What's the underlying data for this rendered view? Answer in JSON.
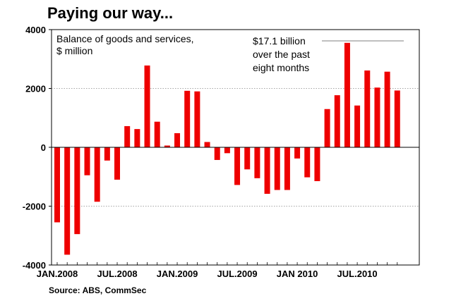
{
  "title": "Paying our way...",
  "source": "Source: ABS, CommSec",
  "chart_data": {
    "type": "bar",
    "ylabel": "Balance of goods and services, $ million",
    "ylabel_lines": [
      "Balance of goods and services,",
      "$ million"
    ],
    "annotation_lines": [
      "$17.1 billion",
      "over the past",
      "eight months"
    ],
    "ylim": [
      -4000,
      4000
    ],
    "yticks": [
      -4000,
      -2000,
      0,
      2000,
      4000
    ],
    "ytick_labels": [
      "-4000",
      "-2000",
      "0",
      "2000",
      "4000"
    ],
    "grid": true,
    "bar_color": "#ee0000",
    "categories": [
      "2008-01",
      "2008-02",
      "2008-03",
      "2008-04",
      "2008-05",
      "2008-06",
      "2008-07",
      "2008-08",
      "2008-09",
      "2008-10",
      "2008-11",
      "2008-12",
      "2009-01",
      "2009-02",
      "2009-03",
      "2009-04",
      "2009-05",
      "2009-06",
      "2009-07",
      "2009-08",
      "2009-09",
      "2009-10",
      "2009-11",
      "2009-12",
      "2010-01",
      "2010-02",
      "2010-03",
      "2010-04",
      "2010-05",
      "2010-06",
      "2010-07",
      "2010-08",
      "2010-09",
      "2010-10",
      "2010-11"
    ],
    "values": [
      -2550,
      -3650,
      -2950,
      -950,
      -1850,
      -450,
      -1100,
      720,
      620,
      2780,
      870,
      60,
      480,
      1920,
      1900,
      180,
      -430,
      -200,
      -1280,
      -750,
      -1050,
      -1580,
      -1450,
      -1450,
      -380,
      -1020,
      -1150,
      1300,
      1770,
      3550,
      1420,
      2610,
      2030,
      2570,
      1930
    ],
    "xtick_labels": [
      {
        "label": "JAN.2008",
        "index": 0
      },
      {
        "label": "JUL.2008",
        "index": 6
      },
      {
        "label": "JAN.2009",
        "index": 12
      },
      {
        "label": "JUL.2009",
        "index": 18
      },
      {
        "label": "JAN 2010",
        "index": 24
      },
      {
        "label": "JUL.2010",
        "index": 30
      }
    ]
  }
}
